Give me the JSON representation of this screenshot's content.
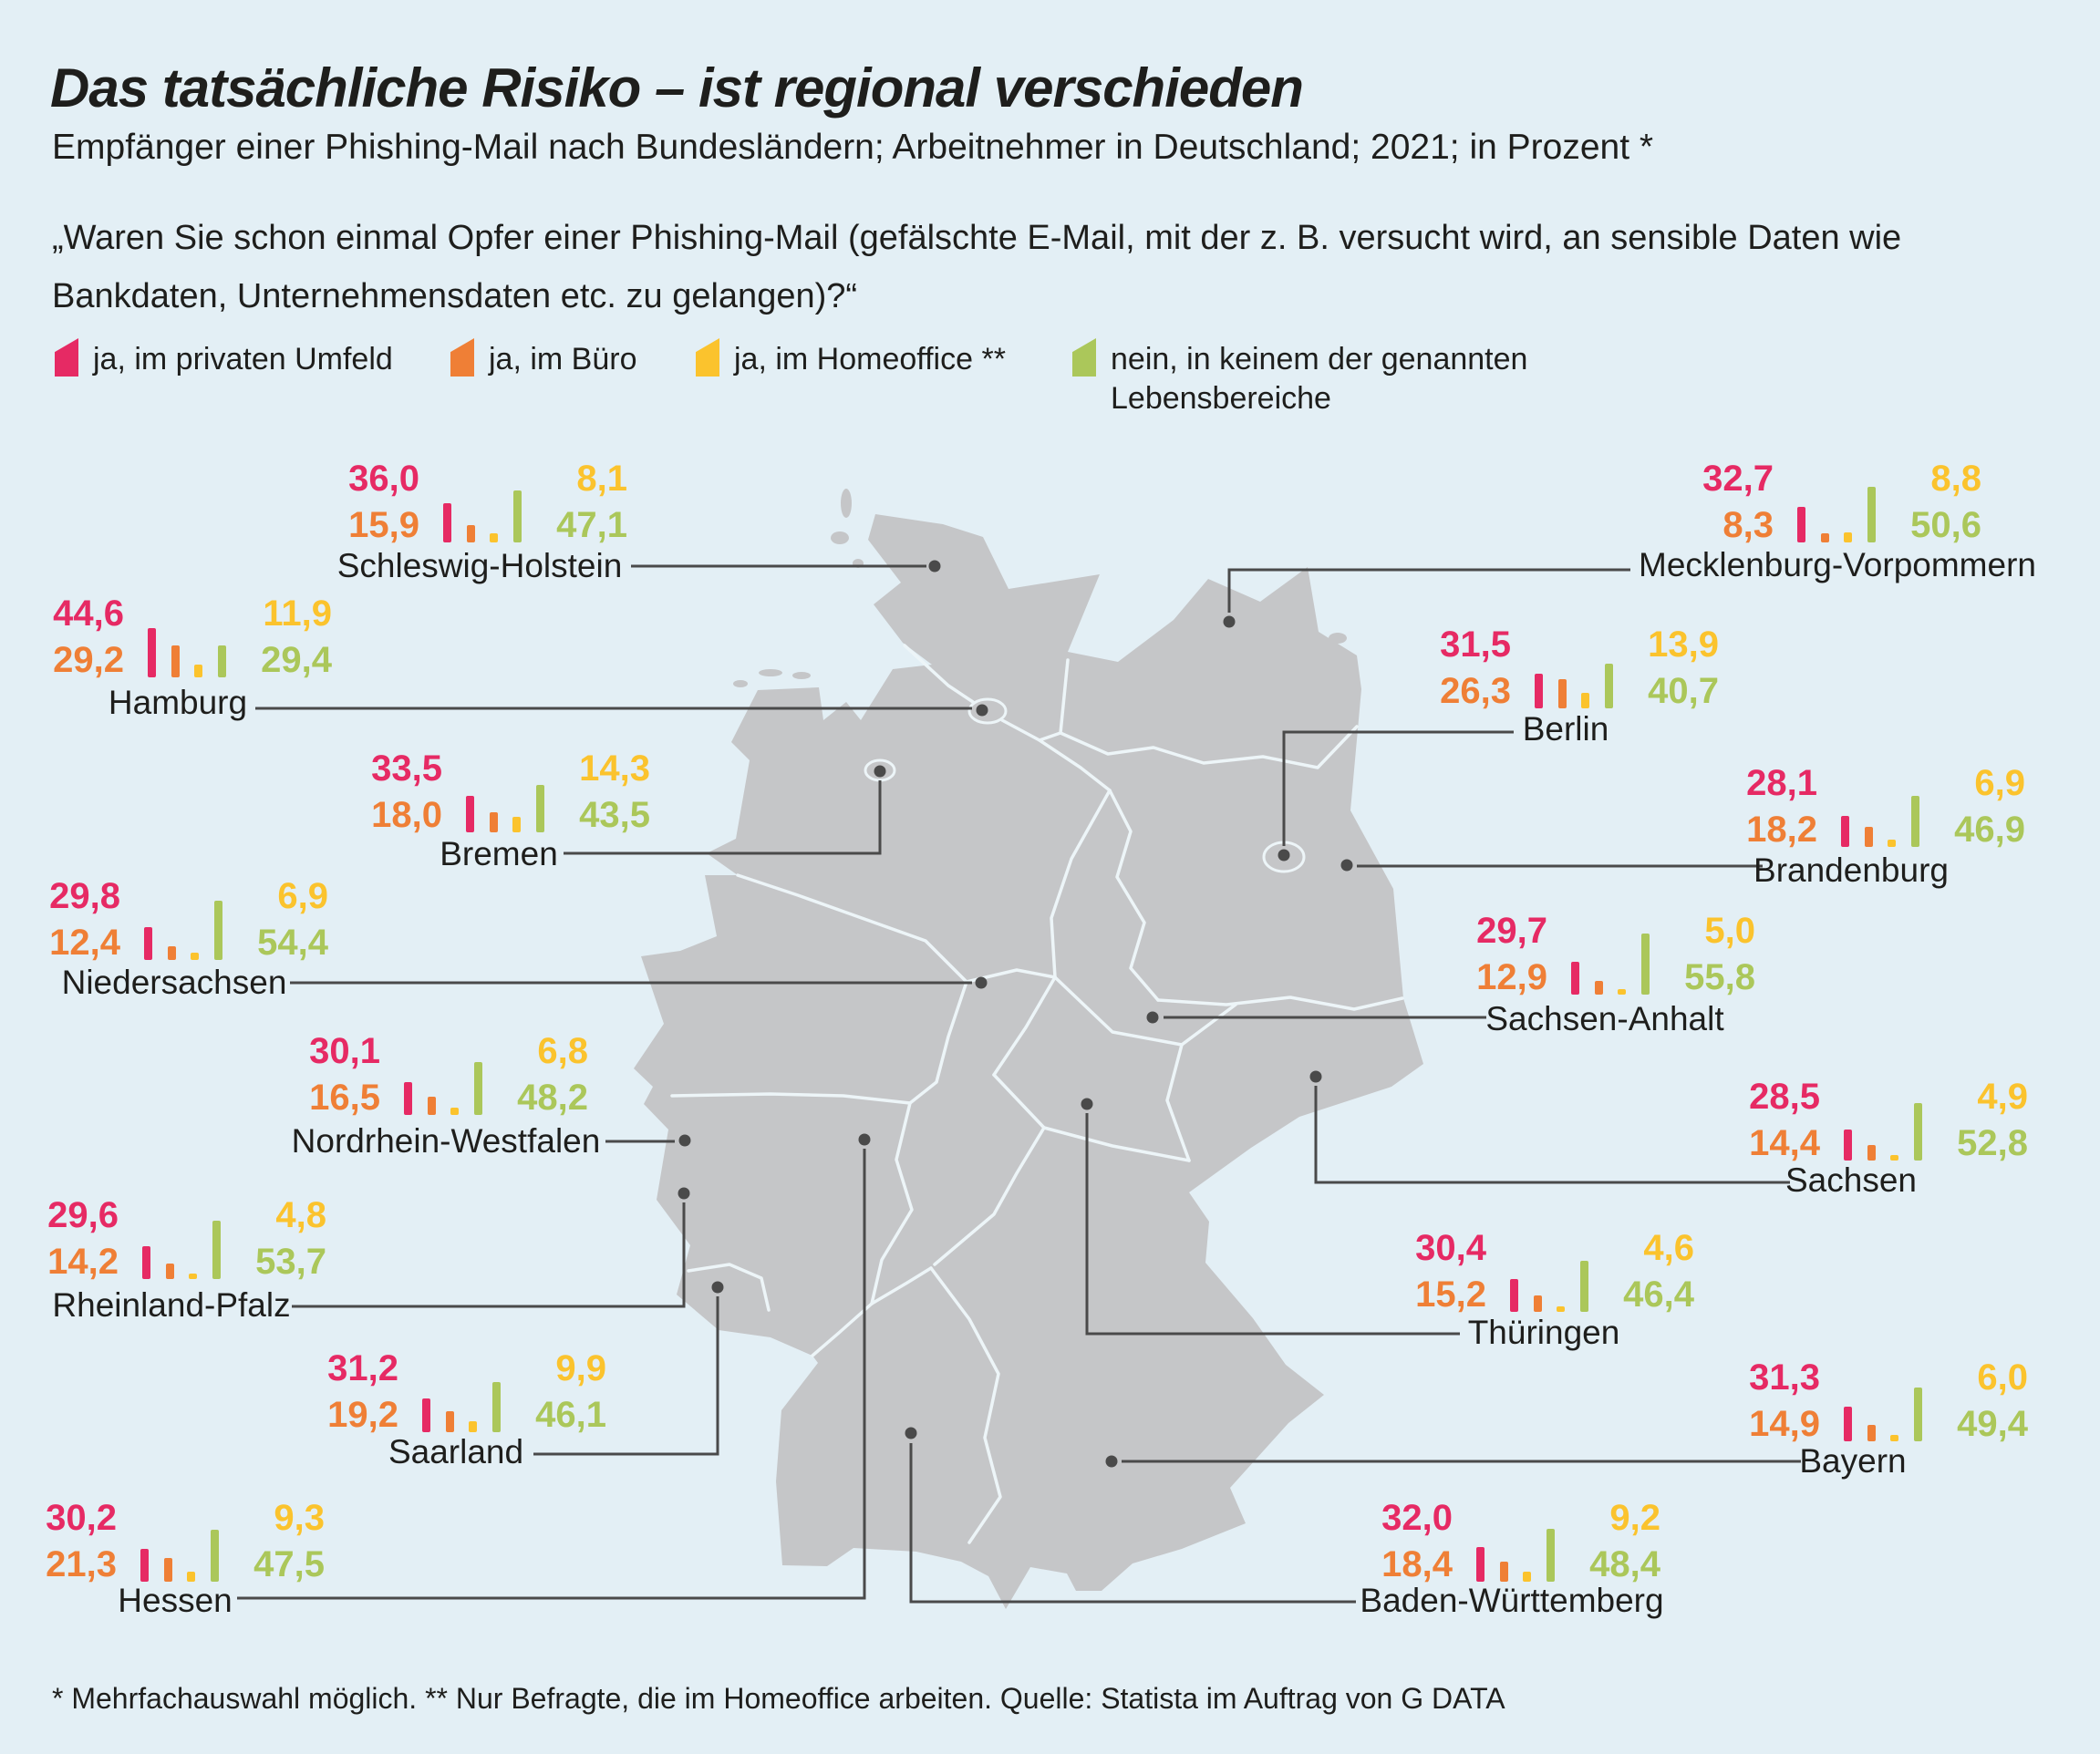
{
  "title": "Das tatsächliche Risiko – ist regional verschieden",
  "subtitle": "Empfänger einer Phishing-Mail nach Bundesländern; Arbeitnehmer in Deutschland; 2021; in Prozent *",
  "question": "„Waren Sie schon einmal Opfer einer Phishing-Mail (gefälschte E-Mail, mit der z. B. versucht wird, an sensible Daten wie Bankdaten, Unternehmensdaten etc. zu gelangen)?“",
  "footnote": "* Mehrfachauswahl möglich. ** Nur Befragte, die im Homeoffice arbeiten. Quelle: Statista im Auftrag von G DATA",
  "legend": {
    "items": [
      {
        "key": "privat",
        "label": "ja, im privaten Umfeld"
      },
      {
        "key": "buero",
        "label": "ja, im Büro"
      },
      {
        "key": "homeoffice",
        "label": "ja, im Homeoffice **"
      },
      {
        "key": "nein",
        "label": "nein, in keinem der genannten Lebensbereiche"
      }
    ]
  },
  "colors": {
    "privat": "#e62a64",
    "buero": "#ef7f36",
    "homeoffice": "#fbc32d",
    "nein": "#abc75a",
    "background": "#e3eff5",
    "map": "#c5c6c8",
    "callout": "#4a4a4a",
    "text": "#1e1e1c"
  },
  "states": [
    {
      "name": "Schleswig-Holstein",
      "values": {
        "privat": "36,0",
        "buero": "15,9",
        "homeoffice": "8,1",
        "nein": "47,1"
      }
    },
    {
      "name": "Mecklenburg-Vorpommern",
      "values": {
        "privat": "32,7",
        "buero": "8,3",
        "homeoffice": "8,8",
        "nein": "50,6"
      }
    },
    {
      "name": "Hamburg",
      "values": {
        "privat": "44,6",
        "buero": "29,2",
        "homeoffice": "11,9",
        "nein": "29,4"
      }
    },
    {
      "name": "Berlin",
      "values": {
        "privat": "31,5",
        "buero": "26,3",
        "homeoffice": "13,9",
        "nein": "40,7"
      }
    },
    {
      "name": "Bremen",
      "values": {
        "privat": "33,5",
        "buero": "18,0",
        "homeoffice": "14,3",
        "nein": "43,5"
      }
    },
    {
      "name": "Brandenburg",
      "values": {
        "privat": "28,1",
        "buero": "18,2",
        "homeoffice": "6,9",
        "nein": "46,9"
      }
    },
    {
      "name": "Niedersachsen",
      "values": {
        "privat": "29,8",
        "buero": "12,4",
        "homeoffice": "6,9",
        "nein": "54,4"
      }
    },
    {
      "name": "Sachsen-Anhalt",
      "values": {
        "privat": "29,7",
        "buero": "12,9",
        "homeoffice": "5,0",
        "nein": "55,8"
      }
    },
    {
      "name": "Nordrhein-Westfalen",
      "values": {
        "privat": "30,1",
        "buero": "16,5",
        "homeoffice": "6,8",
        "nein": "48,2"
      }
    },
    {
      "name": "Sachsen",
      "values": {
        "privat": "28,5",
        "buero": "14,4",
        "homeoffice": "4,9",
        "nein": "52,8"
      }
    },
    {
      "name": "Rheinland-Pfalz",
      "values": {
        "privat": "29,6",
        "buero": "14,2",
        "homeoffice": "4,8",
        "nein": "53,7"
      }
    },
    {
      "name": "Thüringen",
      "values": {
        "privat": "30,4",
        "buero": "15,2",
        "homeoffice": "4,6",
        "nein": "46,4"
      }
    },
    {
      "name": "Saarland",
      "values": {
        "privat": "31,2",
        "buero": "19,2",
        "homeoffice": "9,9",
        "nein": "46,1"
      }
    },
    {
      "name": "Bayern",
      "values": {
        "privat": "31,3",
        "buero": "14,9",
        "homeoffice": "6,0",
        "nein": "49,4"
      }
    },
    {
      "name": "Hessen",
      "values": {
        "privat": "30,2",
        "buero": "21,3",
        "homeoffice": "9,3",
        "nein": "47,5"
      }
    },
    {
      "name": "Baden-Württemberg",
      "values": {
        "privat": "32,0",
        "buero": "18,4",
        "homeoffice": "9,2",
        "nein": "48,4"
      }
    }
  ],
  "chart_data": {
    "type": "table",
    "title": "Das tatsächliche Risiko – ist regional verschieden",
    "subtitle": "Empfänger einer Phishing-Mail nach Bundesländern; Arbeitnehmer in Deutschland; 2021; in Prozent",
    "unit": "%",
    "categories": [
      "ja, im privaten Umfeld",
      "ja, im Büro",
      "ja, im Homeoffice",
      "nein, in keinem der genannten Lebensbereiche"
    ],
    "rows": [
      {
        "state": "Schleswig-Holstein",
        "privat": 36.0,
        "buero": 15.9,
        "homeoffice": 8.1,
        "nein": 47.1
      },
      {
        "state": "Mecklenburg-Vorpommern",
        "privat": 32.7,
        "buero": 8.3,
        "homeoffice": 8.8,
        "nein": 50.6
      },
      {
        "state": "Hamburg",
        "privat": 44.6,
        "buero": 29.2,
        "homeoffice": 11.9,
        "nein": 29.4
      },
      {
        "state": "Berlin",
        "privat": 31.5,
        "buero": 26.3,
        "homeoffice": 13.9,
        "nein": 40.7
      },
      {
        "state": "Bremen",
        "privat": 33.5,
        "buero": 18.0,
        "homeoffice": 14.3,
        "nein": 43.5
      },
      {
        "state": "Brandenburg",
        "privat": 28.1,
        "buero": 18.2,
        "homeoffice": 6.9,
        "nein": 46.9
      },
      {
        "state": "Niedersachsen",
        "privat": 29.8,
        "buero": 12.4,
        "homeoffice": 6.9,
        "nein": 54.4
      },
      {
        "state": "Sachsen-Anhalt",
        "privat": 29.7,
        "buero": 12.9,
        "homeoffice": 5.0,
        "nein": 55.8
      },
      {
        "state": "Nordrhein-Westfalen",
        "privat": 30.1,
        "buero": 16.5,
        "homeoffice": 6.8,
        "nein": 48.2
      },
      {
        "state": "Sachsen",
        "privat": 28.5,
        "buero": 14.4,
        "homeoffice": 4.9,
        "nein": 52.8
      },
      {
        "state": "Rheinland-Pfalz",
        "privat": 29.6,
        "buero": 14.2,
        "homeoffice": 4.8,
        "nein": 53.7
      },
      {
        "state": "Thüringen",
        "privat": 30.4,
        "buero": 15.2,
        "homeoffice": 4.6,
        "nein": 46.4
      },
      {
        "state": "Saarland",
        "privat": 31.2,
        "buero": 19.2,
        "homeoffice": 9.9,
        "nein": 46.1
      },
      {
        "state": "Bayern",
        "privat": 31.3,
        "buero": 14.9,
        "homeoffice": 6.0,
        "nein": 49.4
      },
      {
        "state": "Hessen",
        "privat": 30.2,
        "buero": 21.3,
        "homeoffice": 9.3,
        "nein": 47.5
      },
      {
        "state": "Baden-Württemberg",
        "privat": 32.0,
        "buero": 18.4,
        "homeoffice": 9.2,
        "nein": 48.4
      }
    ]
  }
}
